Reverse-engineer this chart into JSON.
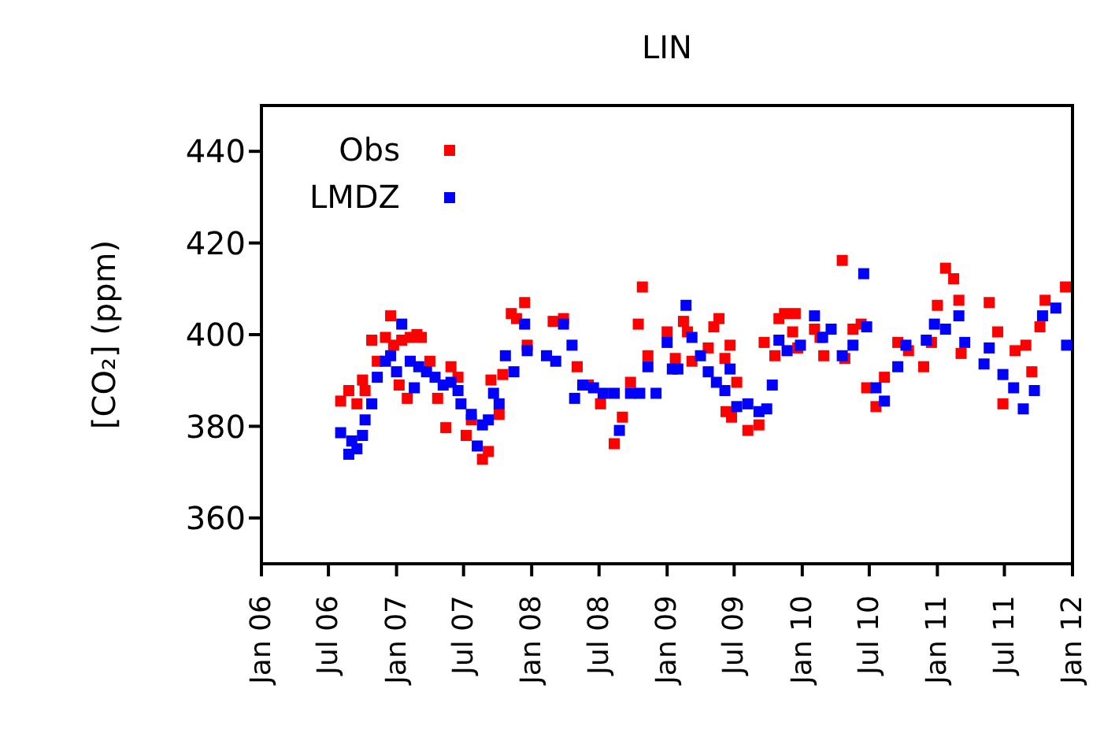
{
  "chart_data": {
    "type": "scatter",
    "title": "LIN",
    "ylabel": "[CO₂] (ppm)",
    "xlim": [
      "2006-01-01",
      "2012-01-01"
    ],
    "xticks": [
      {
        "value": "2006-01-01",
        "label": "Jan 06"
      },
      {
        "value": "2006-07-01",
        "label": "Jul 06"
      },
      {
        "value": "2007-01-01",
        "label": "Jan 07"
      },
      {
        "value": "2007-07-01",
        "label": "Jul 07"
      },
      {
        "value": "2008-01-01",
        "label": "Jan 08"
      },
      {
        "value": "2008-07-01",
        "label": "Jul 08"
      },
      {
        "value": "2009-01-01",
        "label": "Jan 09"
      },
      {
        "value": "2009-07-01",
        "label": "Jul 09"
      },
      {
        "value": "2010-01-01",
        "label": "Jan 10"
      },
      {
        "value": "2010-07-01",
        "label": "Jul 10"
      },
      {
        "value": "2011-01-01",
        "label": "Jan 11"
      },
      {
        "value": "2011-07-01",
        "label": "Jul 11"
      },
      {
        "value": "2012-01-01",
        "label": "Jan 12"
      }
    ],
    "ylim": [
      350,
      450
    ],
    "yticks": [
      360,
      380,
      400,
      420,
      440
    ],
    "grid": false,
    "legend": "top left",
    "marker": "square",
    "series": [
      {
        "name": "Obs",
        "color": "#ff0000",
        "x": [
          "2006-08-03",
          "2006-08-25",
          "2006-09-16",
          "2006-10-01",
          "2006-10-08",
          "2006-10-26",
          "2006-11-10",
          "2006-12-02",
          "2006-12-16",
          "2006-12-24",
          "2007-01-15",
          "2007-02-07",
          "2007-02-25",
          "2007-03-09",
          "2007-01-30",
          "2007-01-08",
          "2007-04-01",
          "2007-04-22",
          "2007-05-14",
          "2007-05-28",
          "2007-06-16",
          "2007-07-08",
          "2007-07-22",
          "2007-08-21",
          "2007-09-06",
          "2007-09-13",
          "2007-10-05",
          "2007-10-15",
          "2007-11-07",
          "2007-11-21",
          "2007-12-13",
          "2007-12-20",
          "2008-02-28",
          "2008-03-27",
          "2008-05-03",
          "2008-06-02",
          "2008-07-05",
          "2008-08-11",
          "2008-09-02",
          "2008-09-24",
          "2008-10-15",
          "2008-10-26",
          "2008-11-10",
          "2009-01-01",
          "2009-02-14",
          "2009-02-25",
          "2009-01-23",
          "2009-03-09",
          "2009-04-22",
          "2009-05-07",
          "2009-05-21",
          "2009-06-20",
          "2009-06-06",
          "2009-07-08",
          "2009-06-09",
          "2009-06-24",
          "2009-08-07",
          "2009-09-06",
          "2009-09-20",
          "2009-10-19",
          "2009-10-30",
          "2009-11-14",
          "2009-12-13",
          "2009-12-06",
          "2009-12-20",
          "2010-02-03",
          "2010-02-18",
          "2010-02-28",
          "2010-04-19",
          "2010-04-26",
          "2010-05-18",
          "2010-06-09",
          "2010-06-24",
          "2010-07-19",
          "2010-08-11",
          "2010-09-16",
          "2010-10-15",
          "2010-11-25",
          "2010-12-16",
          "2011-01-01",
          "2011-01-23",
          "2011-02-14",
          "2011-02-28",
          "2011-03-06",
          "2011-05-21",
          "2011-06-13",
          "2011-06-27",
          "2011-07-30",
          "2011-08-28",
          "2011-09-13",
          "2011-10-05",
          "2011-10-19",
          "2011-12-13"
        ],
        "values": [
          385.5,
          387.8,
          384.9,
          390.1,
          387.8,
          398.8,
          394.2,
          399.4,
          404.1,
          397.7,
          398.8,
          399.4,
          400,
          399.4,
          386.1,
          389,
          394.2,
          386.1,
          379.7,
          393,
          390.7,
          378,
          381.4,
          372.8,
          374.5,
          390.1,
          382.6,
          391.3,
          404.6,
          403.5,
          407,
          397.7,
          402.9,
          403.5,
          393,
          389,
          384.9,
          376.2,
          382,
          389.6,
          402.3,
          410.4,
          395.4,
          400.6,
          402.9,
          400.6,
          394.8,
          394.2,
          397.1,
          401.7,
          403.5,
          397.7,
          394.8,
          389.6,
          383.2,
          382,
          379.1,
          380.3,
          398.3,
          395.4,
          403.5,
          404.6,
          404.6,
          400.6,
          397.1,
          401.2,
          399.4,
          395.4,
          416.2,
          394.8,
          401.2,
          402.3,
          388.4,
          384.3,
          390.7,
          398.3,
          396.5,
          393,
          398.3,
          406.4,
          414.5,
          412.2,
          407.5,
          395.9,
          407,
          400.6,
          384.9,
          396.5,
          397.7,
          391.9,
          401.7,
          407.5,
          410.4
        ]
      },
      {
        "name": "LMDZ",
        "color": "#0000ff",
        "x": [
          "2006-08-03",
          "2006-08-25",
          "2006-09-02",
          "2006-09-16",
          "2006-10-01",
          "2006-10-08",
          "2006-10-26",
          "2006-11-10",
          "2006-12-02",
          "2006-12-16",
          "2007-01-15",
          "2007-01-01",
          "2007-02-07",
          "2007-03-02",
          "2007-02-18",
          "2007-03-23",
          "2007-04-15",
          "2007-05-07",
          "2007-05-28",
          "2007-06-16",
          "2007-06-24",
          "2007-07-22",
          "2007-08-07",
          "2007-08-21",
          "2007-09-06",
          "2007-09-20",
          "2007-10-05",
          "2007-10-22",
          "2007-11-14",
          "2007-12-13",
          "2007-12-20",
          "2008-02-10",
          "2008-03-06",
          "2008-03-27",
          "2008-04-19",
          "2008-04-26",
          "2008-05-18",
          "2008-06-16",
          "2008-07-12",
          "2008-08-11",
          "2008-08-25",
          "2008-09-24",
          "2008-10-19",
          "2008-11-10",
          "2008-12-02",
          "2009-01-01",
          "2009-01-30",
          "2009-01-15",
          "2009-02-21",
          "2009-03-09",
          "2009-04-01",
          "2009-04-22",
          "2009-05-14",
          "2009-06-06",
          "2009-06-20",
          "2009-07-08",
          "2009-08-07",
          "2009-09-06",
          "2009-09-27",
          "2009-10-12",
          "2009-10-30",
          "2009-11-21",
          "2009-12-27",
          "2010-02-03",
          "2010-02-25",
          "2010-03-20",
          "2010-04-19",
          "2010-05-18",
          "2010-06-16",
          "2010-06-24",
          "2010-07-19",
          "2010-08-11",
          "2010-09-16",
          "2010-10-08",
          "2010-12-02",
          "2010-12-24",
          "2011-01-23",
          "2011-02-28",
          "2011-03-16",
          "2011-05-07",
          "2011-05-21",
          "2011-06-27",
          "2011-07-26",
          "2011-08-21",
          "2011-09-20",
          "2011-10-12",
          "2011-11-17",
          "2011-12-16"
        ],
        "values": [
          378.6,
          373.9,
          376.8,
          375.1,
          378,
          381.4,
          384.9,
          390.7,
          394.2,
          395.4,
          402.3,
          391.9,
          394.2,
          393,
          388.4,
          391.9,
          390.7,
          389,
          389.6,
          387.8,
          384.9,
          382.6,
          375.7,
          380.3,
          381.4,
          387.2,
          384.9,
          395.4,
          391.9,
          402.3,
          396.5,
          395.4,
          394.2,
          402.3,
          397.7,
          386.1,
          389,
          388.4,
          387.2,
          387.2,
          379.1,
          387.2,
          387.2,
          393,
          387.2,
          398.3,
          392.5,
          392.5,
          406.4,
          399.4,
          395.4,
          391.9,
          389.6,
          387.8,
          392.5,
          384.3,
          384.9,
          383.2,
          383.8,
          389,
          398.8,
          396.5,
          397.7,
          404.1,
          399.4,
          401.2,
          395.4,
          397.7,
          413.3,
          401.7,
          388.4,
          385.5,
          393,
          397.7,
          398.8,
          402.3,
          401.2,
          404.1,
          398.3,
          393.6,
          397.1,
          391.3,
          388.4,
          383.8,
          387.8,
          404.1,
          405.8,
          397.7
        ]
      }
    ]
  }
}
